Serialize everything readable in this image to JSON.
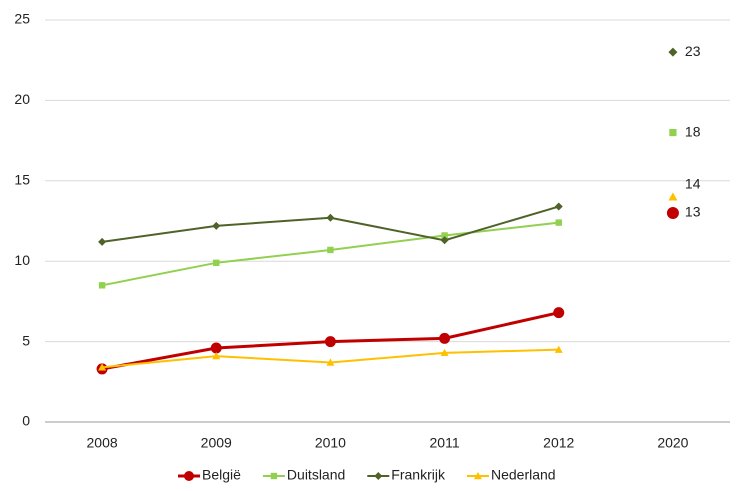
{
  "chart_data": {
    "type": "line",
    "categories": [
      "2008",
      "2009",
      "2010",
      "2011",
      "2012",
      "2020"
    ],
    "series": [
      {
        "name": "België",
        "color": "#c00000",
        "marker": "circle",
        "values": [
          3.3,
          4.6,
          5.0,
          5.2,
          6.8,
          null
        ],
        "target": 13
      },
      {
        "name": "Duitsland",
        "color": "#92d050",
        "marker": "square",
        "values": [
          8.5,
          9.9,
          10.7,
          11.6,
          12.4,
          null
        ],
        "target": 18
      },
      {
        "name": "Frankrijk",
        "color": "#4f6228",
        "marker": "diamond",
        "values": [
          11.2,
          12.2,
          12.7,
          11.3,
          13.4,
          null
        ],
        "target": 23
      },
      {
        "name": "Nederland",
        "color": "#ffc000",
        "marker": "triangle",
        "values": [
          3.4,
          4.1,
          3.7,
          4.3,
          4.5,
          null
        ],
        "target": 14
      }
    ],
    "ylim": [
      0,
      25
    ],
    "yticks": [
      0,
      5,
      10,
      15,
      20,
      25
    ],
    "grid": true,
    "legend": "bottom"
  }
}
